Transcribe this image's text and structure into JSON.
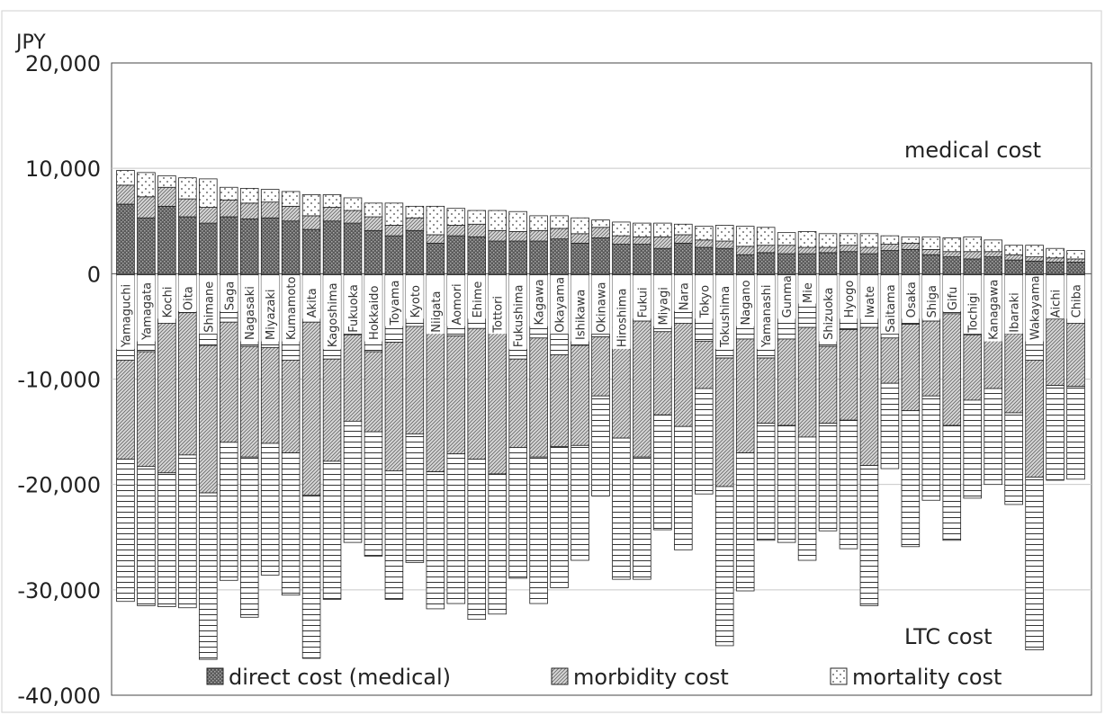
{
  "chart_data": {
    "type": "bar",
    "stacked": true,
    "y_unit_label": "JPY",
    "ylim": [
      -40000,
      20000
    ],
    "yticks": [
      20000,
      10000,
      0,
      -10000,
      -20000,
      -30000,
      -40000
    ],
    "ytick_labels": [
      "20,000",
      "10,000",
      "0",
      "-10,000",
      "-20,000",
      "-30,000",
      "-40,000"
    ],
    "grid": true,
    "annotations": {
      "upper": "medical cost",
      "lower": "LTC cost"
    },
    "legend": {
      "position": "bottom-inside",
      "entries": [
        "direct cost (medical)",
        "morbidity cost",
        "mortality cost"
      ]
    },
    "categories": [
      "Yamaguchi",
      "Yamagata",
      "Kochi",
      "Oita",
      "Shimane",
      "Saga",
      "Nagasaki",
      "Miyazaki",
      "Kumamoto",
      "Akita",
      "Kagoshima",
      "Fukuoka",
      "Hokkaido",
      "Toyama",
      "Kyoto",
      "Niigata",
      "Aomori",
      "Ehime",
      "Tottori",
      "Fukushima",
      "Kagawa",
      "Okayama",
      "Ishikawa",
      "Okinawa",
      "Hiroshima",
      "Fukui",
      "Miyagi",
      "Nara",
      "Tokyo",
      "Tokushima",
      "Nagano",
      "Yamanashi",
      "Gunma",
      "Mie",
      "Shizuoka",
      "Hyogo",
      "Iwate",
      "Saitama",
      "Osaka",
      "Shiga",
      "Gifu",
      "Tochigi",
      "Kanagawa",
      "Ibaraki",
      "Wakayama",
      "Aichi",
      "Chiba"
    ],
    "series": [
      {
        "name": "direct cost (medical)",
        "medical": [
          6600,
          5300,
          6400,
          5400,
          4800,
          5400,
          5200,
          5300,
          5000,
          4200,
          5000,
          4800,
          4100,
          3600,
          4100,
          2900,
          3600,
          3500,
          3100,
          3100,
          3100,
          3300,
          2900,
          3400,
          2800,
          2800,
          2400,
          2900,
          2500,
          2400,
          1800,
          2000,
          1900,
          1900,
          2000,
          2100,
          1900,
          2200,
          2300,
          1800,
          1600,
          1400,
          1600,
          1300,
          1200,
          1100,
          1100
        ],
        "ltc": [
          -8200,
          -7400,
          -4700,
          -3700,
          -6800,
          -4600,
          -6900,
          -7000,
          -8200,
          -4600,
          -8100,
          -5800,
          -7400,
          -6500,
          -5000,
          -4800,
          -5900,
          -5200,
          -4700,
          -8100,
          -6100,
          -7700,
          -6800,
          -6000,
          -5100,
          -4500,
          -5500,
          -4700,
          -6400,
          -8000,
          -6200,
          -8000,
          -6200,
          -5100,
          -6900,
          -5300,
          -5100,
          -6100,
          -4800,
          -4500,
          -3800,
          -5800,
          -6100,
          -5700,
          -8200,
          -4300,
          -4700
        ]
      },
      {
        "name": "morbidity cost",
        "medical": [
          1800,
          2000,
          1800,
          1700,
          1500,
          1600,
          1500,
          1500,
          1400,
          1300,
          1300,
          1200,
          1300,
          1000,
          1200,
          800,
          1000,
          1200,
          1000,
          900,
          1000,
          1000,
          900,
          1000,
          800,
          700,
          1100,
          800,
          700,
          700,
          800,
          700,
          800,
          600,
          500,
          600,
          600,
          600,
          600,
          500,
          500,
          700,
          500,
          500,
          400,
          400,
          300
        ],
        "ltc": [
          -9400,
          -10900,
          -14200,
          -13500,
          -14000,
          -11400,
          -10500,
          -9100,
          -8800,
          -16400,
          -9700,
          -8200,
          -7600,
          -12200,
          -10200,
          -14000,
          -11200,
          -12400,
          -14300,
          -8400,
          -11300,
          -8700,
          -9500,
          -5600,
          -10500,
          -12900,
          -7900,
          -9800,
          -4500,
          -12200,
          -10800,
          -6200,
          -8200,
          -10400,
          -7300,
          -8600,
          -13100,
          -4300,
          -8200,
          -7100,
          -10600,
          -6200,
          -4800,
          -7500,
          -11100,
          -6300,
          -6000
        ]
      },
      {
        "name": "mortality cost",
        "medical": [
          1400,
          2300,
          1100,
          2000,
          2700,
          1200,
          1400,
          1200,
          1400,
          2000,
          1200,
          1200,
          1300,
          2100,
          1100,
          2700,
          1600,
          1300,
          1900,
          1900,
          1400,
          1200,
          1500,
          700,
          1300,
          1300,
          1300,
          1000,
          1300,
          1500,
          1900,
          1700,
          1200,
          1500,
          1300,
          1100,
          1300,
          800,
          600,
          1200,
          1300,
          1400,
          1100,
          900,
          1100,
          900,
          800
        ],
        "ltc": [
          -13500,
          -13200,
          -12700,
          -14500,
          -15800,
          -13100,
          -15200,
          -12500,
          -13500,
          -15500,
          -13100,
          -11500,
          -11800,
          -12200,
          -12200,
          -13000,
          -14200,
          -15200,
          -13300,
          -12400,
          -13900,
          -13400,
          -10900,
          -9500,
          -13400,
          -11600,
          -10900,
          -11700,
          -10000,
          -15100,
          -13100,
          -11100,
          -11100,
          -11700,
          -10200,
          -12200,
          -13300,
          -8100,
          -12900,
          -9900,
          -10900,
          -9300,
          -9100,
          -8700,
          -16400,
          -9000,
          -8800
        ]
      }
    ]
  }
}
